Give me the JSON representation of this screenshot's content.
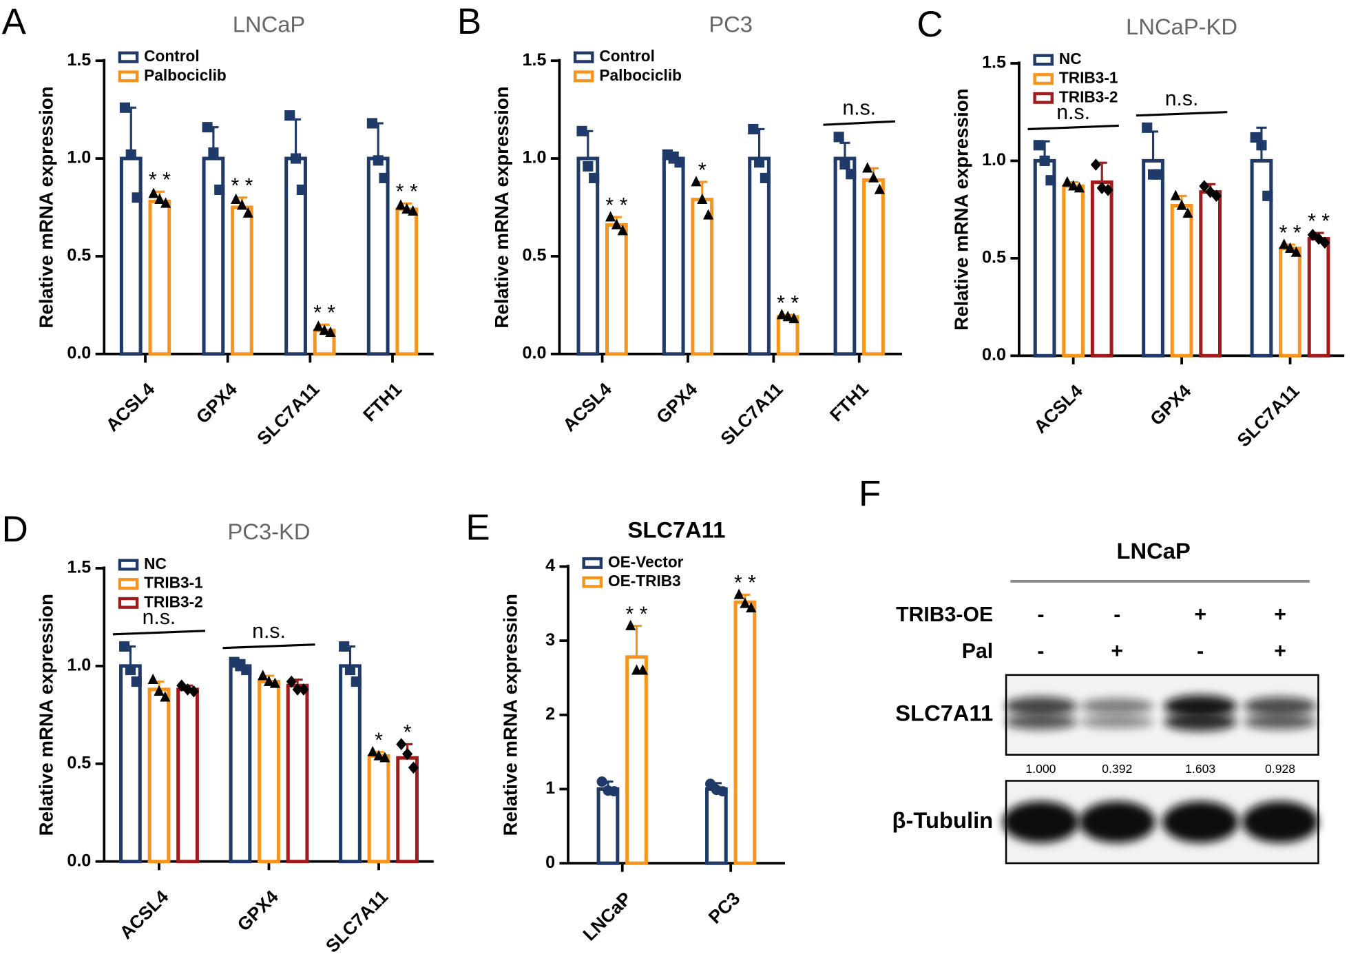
{
  "chart_data": [
    {
      "type": "bar",
      "panel": "A",
      "title": "LNCaP",
      "title_color": "#666666",
      "y_label": "Relative mRNA expression",
      "categories": [
        "ACSL4",
        "GPX4",
        "SLC7A11",
        "FTH1"
      ],
      "series": [
        {
          "name": "Control",
          "color": "#1f3a68",
          "marker": "square",
          "values": [
            1.0,
            1.0,
            1.0,
            1.0
          ],
          "errors": [
            0.26,
            0.16,
            0.2,
            0.18
          ],
          "points": [
            [
              1.26,
              1.02,
              0.8
            ],
            [
              1.16,
              1.03,
              0.84
            ],
            [
              1.22,
              1.0,
              0.84
            ],
            [
              1.18,
              0.99,
              0.9
            ]
          ],
          "annotations": [
            null,
            null,
            null,
            null
          ]
        },
        {
          "name": "Palbociclib",
          "color": "#f7941d",
          "marker": "triangle",
          "values": [
            0.78,
            0.75,
            0.12,
            0.74
          ],
          "errors": [
            0.05,
            0.05,
            0.03,
            0.03
          ],
          "points": [
            [
              0.82,
              0.79,
              0.77
            ],
            [
              0.79,
              0.76,
              0.72
            ],
            [
              0.14,
              0.12,
              0.11
            ],
            [
              0.76,
              0.74,
              0.73
            ]
          ],
          "annotations": [
            "* *",
            "* *",
            "* *",
            "* *"
          ]
        }
      ],
      "group_labels": [
        null,
        null,
        null,
        null
      ],
      "ylim": [
        0,
        1.5
      ],
      "yticks": [
        {
          "value": 0,
          "label": "0.0"
        },
        {
          "value": 0.5,
          "label": "0.5"
        },
        {
          "value": 1,
          "label": "1.0"
        },
        {
          "value": 1.5,
          "label": "1.5"
        }
      ],
      "legend": "upper left"
    },
    {
      "type": "bar",
      "panel": "B",
      "title": "PC3",
      "title_color": "#666666",
      "y_label": "Relative mRNA expression",
      "categories": [
        "ACSL4",
        "GPX4",
        "SLC7A11",
        "FTH1"
      ],
      "series": [
        {
          "name": "Control",
          "color": "#1f3a68",
          "marker": "square",
          "values": [
            1.0,
            1.0,
            1.0,
            1.0
          ],
          "errors": [
            0.14,
            0.03,
            0.15,
            0.08
          ],
          "points": [
            [
              1.14,
              0.96,
              0.9
            ],
            [
              1.02,
              1.0,
              0.98
            ],
            [
              1.15,
              0.98,
              0.9
            ],
            [
              1.11,
              0.97,
              0.92
            ]
          ],
          "annotations": [
            null,
            null,
            null,
            null
          ]
        },
        {
          "name": "Palbociclib",
          "color": "#f7941d",
          "marker": "triangle",
          "values": [
            0.66,
            0.79,
            0.19,
            0.89
          ],
          "errors": [
            0.04,
            0.09,
            0.01,
            0.06
          ],
          "points": [
            [
              0.7,
              0.66,
              0.63
            ],
            [
              0.88,
              0.79,
              0.71
            ],
            [
              0.2,
              0.19,
              0.18
            ],
            [
              0.95,
              0.9,
              0.84
            ]
          ],
          "annotations": [
            "* *",
            "*",
            "* *",
            null
          ]
        }
      ],
      "group_labels": [
        null,
        null,
        null,
        "n.s."
      ],
      "ylim": [
        0,
        1.5
      ],
      "yticks": [
        {
          "value": 0,
          "label": "0.0"
        },
        {
          "value": 0.5,
          "label": "0.5"
        },
        {
          "value": 1,
          "label": "1.0"
        },
        {
          "value": 1.5,
          "label": "1.5"
        }
      ],
      "legend": "upper left"
    },
    {
      "type": "bar",
      "panel": "C",
      "title": "LNCaP-KD",
      "title_color": "#666666",
      "y_label": "Relative mRNA expression",
      "categories": [
        "ACSL4",
        "GPX4",
        "SLC7A11"
      ],
      "series": [
        {
          "name": "NC",
          "color": "#1f3a68",
          "marker": "square",
          "values": [
            1.0,
            1.0,
            1.0
          ],
          "errors": [
            0.1,
            0.15,
            0.17
          ],
          "points": [
            [
              1.08,
              1.0,
              0.9
            ],
            [
              1.17,
              0.93,
              0.93
            ],
            [
              1.12,
              1.08,
              0.82
            ]
          ],
          "annotations": [
            null,
            null,
            null
          ]
        },
        {
          "name": "TRIB3-1",
          "color": "#f7941d",
          "marker": "triangle",
          "values": [
            0.87,
            0.77,
            0.55
          ],
          "errors": [
            0.02,
            0.05,
            0.02
          ],
          "points": [
            [
              0.89,
              0.87,
              0.86
            ],
            [
              0.82,
              0.77,
              0.73
            ],
            [
              0.57,
              0.55,
              0.53
            ]
          ],
          "annotations": [
            null,
            null,
            "* *"
          ]
        },
        {
          "name": "TRIB3-2",
          "color": "#a01c1c",
          "marker": "diamond",
          "values": [
            0.89,
            0.84,
            0.6
          ],
          "errors": [
            0.1,
            0.04,
            0.03
          ],
          "points": [
            [
              0.98,
              0.86,
              0.85
            ],
            [
              0.87,
              0.84,
              0.82
            ],
            [
              0.62,
              0.6,
              0.58
            ]
          ],
          "annotations": [
            null,
            null,
            "* *"
          ]
        }
      ],
      "group_labels": [
        "n.s.",
        "n.s.",
        null
      ],
      "ylim": [
        0,
        1.5
      ],
      "yticks": [
        {
          "value": 0,
          "label": "0.0"
        },
        {
          "value": 0.5,
          "label": "0.5"
        },
        {
          "value": 1,
          "label": "1.0"
        },
        {
          "value": 1.5,
          "label": "1.5"
        }
      ],
      "legend": "upper left"
    },
    {
      "type": "bar",
      "panel": "D",
      "title": "PC3-KD",
      "title_color": "#666666",
      "y_label": "Relative mRNA expression",
      "categories": [
        "ACSL4",
        "GPX4",
        "SLC7A11"
      ],
      "series": [
        {
          "name": "NC",
          "color": "#1f3a68",
          "marker": "square",
          "values": [
            1.0,
            1.0,
            1.0
          ],
          "errors": [
            0.1,
            0.03,
            0.1
          ],
          "points": [
            [
              1.1,
              0.98,
              0.92
            ],
            [
              1.02,
              1.0,
              0.98
            ],
            [
              1.1,
              0.98,
              0.92
            ]
          ],
          "annotations": [
            null,
            null,
            null
          ]
        },
        {
          "name": "TRIB3-1",
          "color": "#f7941d",
          "marker": "triangle",
          "values": [
            0.88,
            0.92,
            0.54
          ],
          "errors": [
            0.04,
            0.03,
            0.02
          ],
          "points": [
            [
              0.93,
              0.87,
              0.84
            ],
            [
              0.95,
              0.92,
              0.91
            ],
            [
              0.56,
              0.54,
              0.53
            ]
          ],
          "annotations": [
            null,
            null,
            "*"
          ]
        },
        {
          "name": "TRIB3-2",
          "color": "#a01c1c",
          "marker": "diamond",
          "values": [
            0.88,
            0.9,
            0.53
          ],
          "errors": [
            0.02,
            0.03,
            0.07
          ],
          "points": [
            [
              0.9,
              0.88,
              0.87
            ],
            [
              0.92,
              0.88,
              0.88
            ],
            [
              0.6,
              0.55,
              0.48
            ]
          ],
          "annotations": [
            null,
            null,
            "*"
          ]
        }
      ],
      "group_labels": [
        "n.s.",
        "n.s.",
        null
      ],
      "ylim": [
        0,
        1.5
      ],
      "yticks": [
        {
          "value": 0,
          "label": "0.0"
        },
        {
          "value": 0.5,
          "label": "0.5"
        },
        {
          "value": 1,
          "label": "1.0"
        },
        {
          "value": 1.5,
          "label": "1.5"
        }
      ],
      "legend": "upper left"
    },
    {
      "type": "bar",
      "panel": "E",
      "title": "SLC7A11",
      "title_color": "#000000",
      "y_label": "Relative mRNA expression",
      "categories": [
        "LNCaP",
        "PC3"
      ],
      "series": [
        {
          "name": "OE-Vector",
          "color": "#1f3a68",
          "marker": "circle",
          "values": [
            1.0,
            1.0
          ],
          "errors": [
            0.1,
            0.08
          ],
          "points": [
            [
              1.1,
              0.98,
              0.97
            ],
            [
              1.07,
              0.99,
              0.97
            ]
          ],
          "annotations": [
            null,
            null
          ]
        },
        {
          "name": "OE-TRIB3",
          "color": "#f7941d",
          "marker": "triangle",
          "values": [
            2.78,
            3.52
          ],
          "errors": [
            0.42,
            0.1
          ],
          "points": [
            [
              3.2,
              2.6,
              2.6
            ],
            [
              3.62,
              3.5,
              3.44
            ]
          ],
          "annotations": [
            "* *",
            "* *"
          ]
        }
      ],
      "group_labels": [
        null,
        null
      ],
      "ylim": [
        0,
        4
      ],
      "yticks": [
        0,
        1,
        2,
        3,
        4
      ],
      "legend": "upper left"
    }
  ],
  "blot": {
    "panel": "F",
    "title": "LNCaP",
    "conditions": [
      {
        "label": "TRIB3-OE",
        "signs": [
          "-",
          "-",
          "+",
          "+"
        ]
      },
      {
        "label": "Pal",
        "signs": [
          "-",
          "+",
          "-",
          "+"
        ]
      }
    ],
    "bands": [
      {
        "label": "SLC7A11",
        "quantities": [
          "1.000",
          "0.392",
          "1.603",
          "0.928"
        ]
      },
      {
        "label": "β-Tubulin"
      }
    ]
  }
}
